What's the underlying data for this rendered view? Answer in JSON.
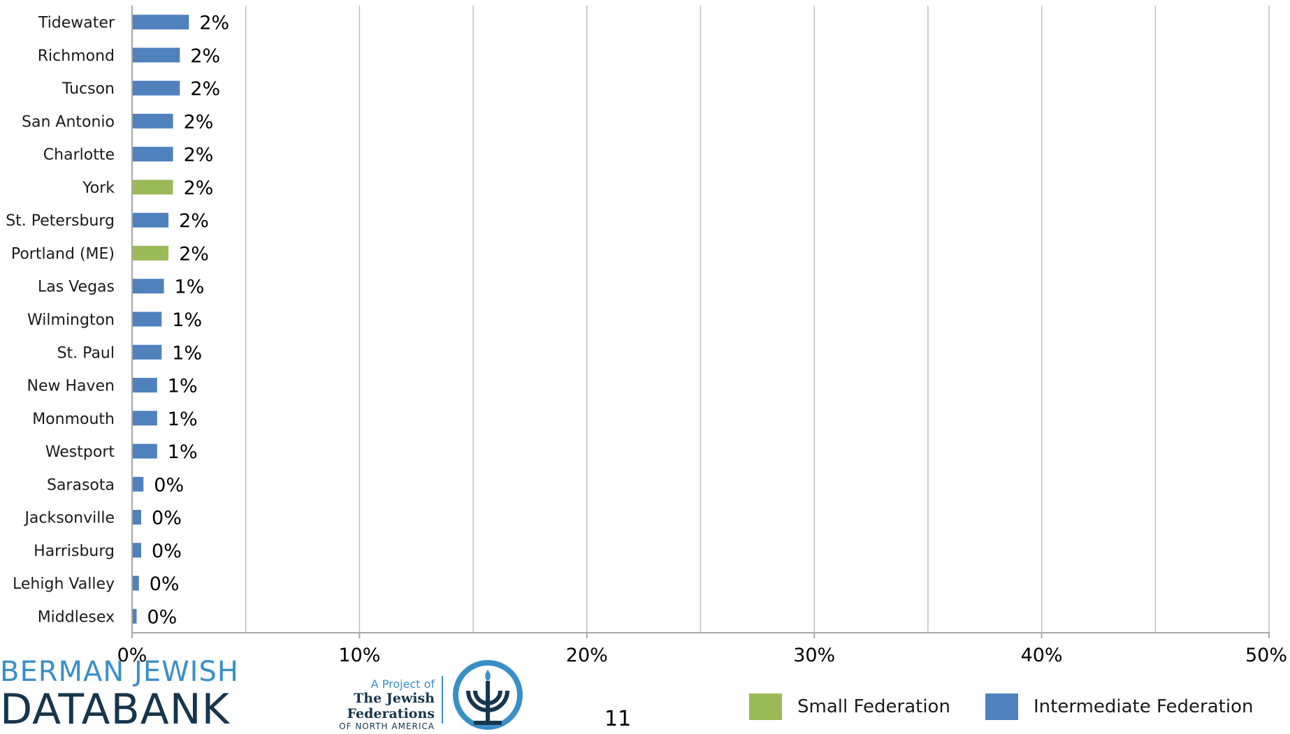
{
  "chart_data": {
    "type": "bar",
    "orientation": "horizontal",
    "categories": [
      "Tidewater",
      "Richmond",
      "Tucson",
      "San Antonio",
      "Charlotte",
      "York",
      "St. Petersburg",
      "Portland (ME)",
      "Las Vegas",
      "Wilmington",
      "St. Paul",
      "New Haven",
      "Monmouth",
      "Westport",
      "Sarasota",
      "Jacksonville",
      "Harrisburg",
      "Lehigh Valley",
      "Middlesex"
    ],
    "values": [
      2.5,
      2.1,
      2.1,
      1.8,
      1.8,
      1.8,
      1.6,
      1.6,
      1.4,
      1.3,
      1.3,
      1.1,
      1.1,
      1.1,
      0.5,
      0.4,
      0.4,
      0.3,
      0.2
    ],
    "value_labels": [
      "2%",
      "2%",
      "2%",
      "2%",
      "2%",
      "2%",
      "2%",
      "2%",
      "1%",
      "1%",
      "1%",
      "1%",
      "1%",
      "1%",
      "0%",
      "0%",
      "0%",
      "0%",
      "0%"
    ],
    "groups": [
      "Intermediate Federation",
      "Intermediate Federation",
      "Intermediate Federation",
      "Intermediate Federation",
      "Intermediate Federation",
      "Small Federation",
      "Intermediate Federation",
      "Small Federation",
      "Intermediate Federation",
      "Intermediate Federation",
      "Intermediate Federation",
      "Intermediate Federation",
      "Intermediate Federation",
      "Intermediate Federation",
      "Intermediate Federation",
      "Intermediate Federation",
      "Intermediate Federation",
      "Intermediate Federation",
      "Intermediate Federation"
    ],
    "xlim": [
      0,
      50
    ],
    "xticks": [
      0,
      10,
      20,
      30,
      40,
      50
    ],
    "xtick_labels": [
      "0%",
      "10%",
      "20%",
      "30%",
      "40%",
      "50%"
    ],
    "minor_gridlines": [
      5,
      15,
      25,
      35,
      45
    ],
    "grid": true,
    "legend_position": "bottom-right",
    "legend": [
      {
        "name": "Small Federation",
        "color": "#9bbb59"
      },
      {
        "name": "Intermediate Federation",
        "color": "#4f81bd"
      }
    ],
    "colors": {
      "Small Federation": "#9bbb59",
      "Intermediate Federation": "#4f81bd"
    }
  },
  "page_number": "11",
  "logo": {
    "berman_line1": "BERMAN JEWISH",
    "berman_line2": "DATABANK",
    "jfna_project": "A Project of",
    "jfna_name": "The Jewish Federations",
    "jfna_sub": "OF NORTH AMERICA",
    "emblem_icon": "menorah-circle-icon"
  }
}
